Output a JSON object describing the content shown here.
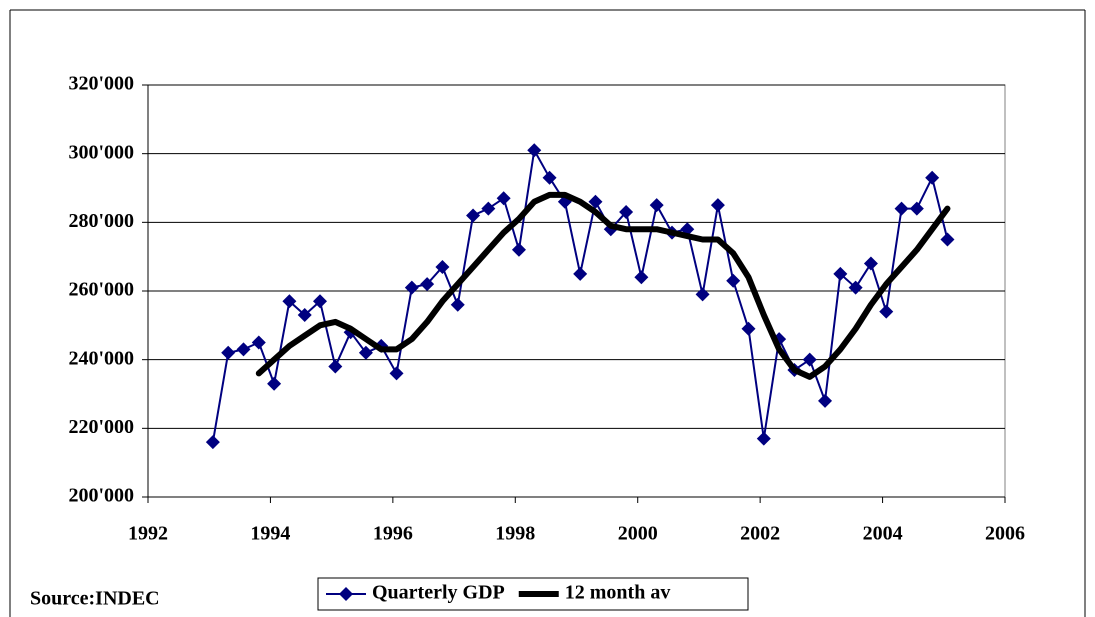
{
  "chart_data": {
    "type": "line",
    "x": [
      1993.06,
      1993.31,
      1993.56,
      1993.81,
      1994.06,
      1994.31,
      1994.56,
      1994.81,
      1995.06,
      1995.31,
      1995.56,
      1995.81,
      1996.06,
      1996.31,
      1996.56,
      1996.81,
      1997.06,
      1997.31,
      1997.56,
      1997.81,
      1998.06,
      1998.31,
      1998.56,
      1998.81,
      1999.06,
      1999.31,
      1999.56,
      1999.81,
      2000.06,
      2000.31,
      2000.56,
      2000.81,
      2001.06,
      2001.31,
      2001.56,
      2001.81,
      2002.06,
      2002.31,
      2002.56,
      2002.81,
      2003.06,
      2003.31,
      2003.56,
      2003.81,
      2004.06,
      2004.31,
      2004.56,
      2004.81,
      2005.06
    ],
    "series": [
      {
        "name": "Quarterly GDP",
        "color": "#000080",
        "marker": "diamond",
        "values": [
          216000,
          242000,
          243000,
          245000,
          233000,
          257000,
          253000,
          257000,
          238000,
          248000,
          242000,
          244000,
          236000,
          261000,
          262000,
          267000,
          256000,
          282000,
          284000,
          287000,
          272000,
          301000,
          293000,
          286000,
          265000,
          286000,
          278000,
          283000,
          264000,
          285000,
          277000,
          278000,
          259000,
          285000,
          263000,
          249000,
          217000,
          246000,
          237000,
          240000,
          228000,
          265000,
          261000,
          268000,
          254000,
          284000,
          284000,
          293000,
          275000
        ]
      },
      {
        "name": "12 month av",
        "color": "#000000",
        "values": [
          null,
          null,
          null,
          236000,
          240000,
          244000,
          247000,
          250000,
          251000,
          249000,
          246000,
          243000,
          243000,
          246000,
          251000,
          257000,
          262000,
          267000,
          272000,
          277000,
          281000,
          286000,
          288000,
          288000,
          286000,
          283000,
          279000,
          278000,
          278000,
          278000,
          277000,
          276000,
          275000,
          275000,
          271000,
          264000,
          253000,
          243000,
          237000,
          235000,
          238000,
          243000,
          249000,
          256000,
          262000,
          267000,
          272000,
          278000,
          284000
        ]
      }
    ],
    "xlim": [
      1992,
      2006
    ],
    "xticks": [
      1992,
      1994,
      1996,
      1998,
      2000,
      2002,
      2004,
      2006
    ],
    "ylim": [
      200000,
      320000
    ],
    "yticks": [
      {
        "value": 200000,
        "label": "200'000"
      },
      {
        "value": 220000,
        "label": "220'000"
      },
      {
        "value": 240000,
        "label": "240'000"
      },
      {
        "value": 260000,
        "label": "260'000"
      },
      {
        "value": 280000,
        "label": "280'000"
      },
      {
        "value": 300000,
        "label": "300'000"
      },
      {
        "value": 320000,
        "label": "320'000"
      }
    ],
    "grid": true,
    "legend": "bottom",
    "source": "Source:INDEC"
  }
}
